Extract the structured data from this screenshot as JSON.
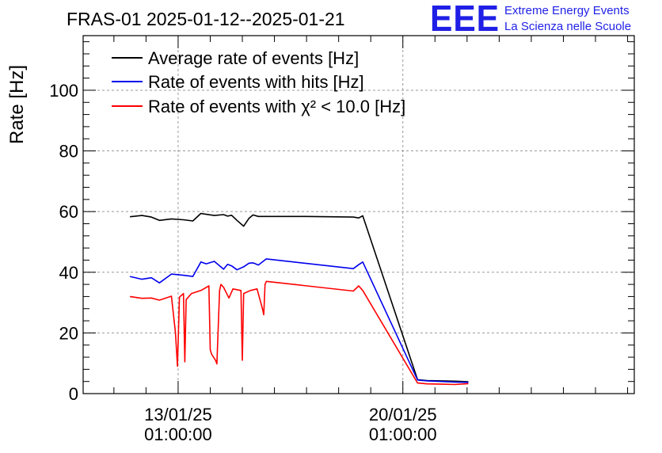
{
  "header": {
    "title": "FRAS-01 2025-01-12--2025-01-21",
    "logo_text": "EEE",
    "logo_line1": "Extreme Energy Events",
    "logo_line2": "La Scienza nelle Scuole"
  },
  "colors": {
    "logo": "#1f1fe6",
    "black": "#000000",
    "blue": "#0000ee",
    "red": "#ff0000",
    "grid": "#9a9a9a"
  },
  "chart_data": {
    "type": "line",
    "title": "FRAS-01 2025-01-12--2025-01-21",
    "xlabel": "",
    "ylabel": "Rate [Hz]",
    "xlim": [
      "2025-01-10T02:00",
      "2025-01-27T06:00"
    ],
    "ylim": [
      0,
      118
    ],
    "x_ticks": [
      {
        "date": "13/01/25",
        "time": "01:00:00",
        "at": "2025-01-13T01:00"
      },
      {
        "date": "20/01/25",
        "time": "01:00:00",
        "at": "2025-01-20T01:00"
      }
    ],
    "y_ticks": [
      0,
      20,
      40,
      60,
      80,
      100
    ],
    "grid": true,
    "legend_position": "top-left",
    "series": [
      {
        "name": "Average rate of events [Hz]",
        "color": "#000000",
        "x": [
          "2025-01-11T13:00",
          "2025-01-11T22:00",
          "2025-01-12T05:00",
          "2025-01-12T11:00",
          "2025-01-12T20:00",
          "2025-01-13T05:00",
          "2025-01-13T12:00",
          "2025-01-13T18:00",
          "2025-01-13T22:00",
          "2025-01-14T04:00",
          "2025-01-14T11:00",
          "2025-01-14T14:00",
          "2025-01-14T17:00",
          "2025-01-14T21:00",
          "2025-01-15T02:00",
          "2025-01-15T06:00",
          "2025-01-15T09:00",
          "2025-01-15T13:00",
          "2025-01-15T19:00",
          "2025-01-17T00:00",
          "2025-01-18T12:00",
          "2025-01-18T16:00",
          "2025-01-18T19:00",
          "2025-01-20T12:00",
          "2025-01-20T19:00",
          "2025-01-21T06:00",
          "2025-01-21T16:00",
          "2025-01-22T02:00"
        ],
        "y": [
          58.3,
          58.7,
          58.2,
          57.1,
          57.6,
          57.3,
          56.9,
          59.4,
          59.1,
          58.7,
          59.0,
          58.5,
          58.8,
          57.1,
          55.2,
          57.8,
          58.9,
          58.4,
          58.4,
          58.4,
          58.2,
          57.9,
          58.6,
          4.6,
          4.3,
          4.2,
          4.1,
          3.9
        ]
      },
      {
        "name": "Rate of events with hits [Hz]",
        "color": "#0000ee",
        "x": [
          "2025-01-11T13:00",
          "2025-01-11T22:00",
          "2025-01-12T05:00",
          "2025-01-12T11:00",
          "2025-01-12T20:00",
          "2025-01-13T05:00",
          "2025-01-13T12:00",
          "2025-01-13T18:00",
          "2025-01-13T22:00",
          "2025-01-14T04:00",
          "2025-01-14T11:00",
          "2025-01-14T14:00",
          "2025-01-14T17:00",
          "2025-01-14T21:00",
          "2025-01-15T02:00",
          "2025-01-15T06:00",
          "2025-01-15T09:00",
          "2025-01-15T13:00",
          "2025-01-15T19:00",
          "2025-01-18T12:00",
          "2025-01-18T16:00",
          "2025-01-18T19:00",
          "2025-01-20T12:00",
          "2025-01-20T19:00",
          "2025-01-21T06:00",
          "2025-01-21T16:00",
          "2025-01-22T02:00"
        ],
        "y": [
          38.6,
          37.7,
          38.2,
          36.5,
          39.4,
          39.0,
          38.6,
          43.4,
          42.8,
          43.6,
          41.0,
          42.6,
          42.1,
          40.8,
          41.8,
          43.0,
          43.1,
          42.4,
          44.4,
          41.2,
          42.5,
          43.4,
          4.5,
          4.2,
          4.0,
          3.8,
          3.7
        ]
      },
      {
        "name": "Rate of events with χ² < 10.0 [Hz]",
        "color": "#ff0000",
        "x": [
          "2025-01-11T13:00",
          "2025-01-11T22:00",
          "2025-01-12T05:00",
          "2025-01-12T11:00",
          "2025-01-12T20:00",
          "2025-01-12T23:00",
          "2025-01-13T00:30",
          "2025-01-13T02:00",
          "2025-01-13T05:00",
          "2025-01-13T06:00",
          "2025-01-13T07:00",
          "2025-01-13T11:00",
          "2025-01-13T18:00",
          "2025-01-14T00:00",
          "2025-01-14T01:00",
          "2025-01-14T02:00",
          "2025-01-14T05:00",
          "2025-01-14T06:00",
          "2025-01-14T08:00",
          "2025-01-14T09:00",
          "2025-01-14T11:00",
          "2025-01-14T15:00",
          "2025-01-14T18:00",
          "2025-01-15T00:00",
          "2025-01-15T01:00",
          "2025-01-15T02:00",
          "2025-01-15T07:00",
          "2025-01-15T12:00",
          "2025-01-15T16:00",
          "2025-01-15T17:00",
          "2025-01-15T18:00",
          "2025-01-15T19:00",
          "2025-01-18T12:00",
          "2025-01-18T16:00",
          "2025-01-18T19:00",
          "2025-01-20T12:00",
          "2025-01-20T19:00",
          "2025-01-21T06:00",
          "2025-01-21T16:00",
          "2025-01-22T02:00"
        ],
        "y": [
          32.0,
          31.4,
          31.5,
          30.8,
          32.1,
          20.0,
          9.0,
          31.8,
          33.0,
          10.5,
          31.0,
          33.0,
          34.0,
          35.5,
          14.5,
          13.0,
          11.0,
          9.8,
          34.0,
          36.0,
          35.0,
          31.5,
          34.5,
          34.0,
          11.0,
          33.0,
          34.0,
          34.5,
          28.0,
          26.0,
          36.0,
          37.0,
          33.8,
          35.5,
          34.0,
          3.5,
          3.2,
          3.1,
          3.0,
          3.3
        ]
      }
    ]
  }
}
